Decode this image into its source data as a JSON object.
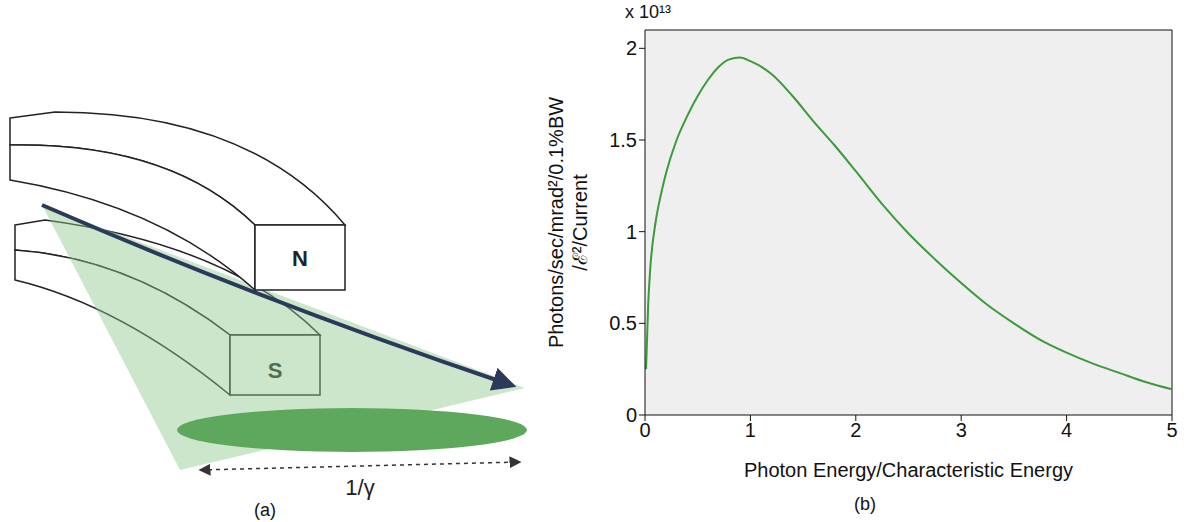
{
  "diagram": {
    "magnets": [
      "N",
      "S"
    ],
    "annotation": "1/γ",
    "caption": "(a)"
  },
  "chart_data": {
    "type": "line",
    "caption": "(b)",
    "y_multiplier": "x 10¹³",
    "xlabel": "Photon Energy/Characteristic Energy",
    "ylabel": "Photons/sec/mrad²/0.1%BW/ℰ²/Current",
    "x": [
      0.01,
      0.03,
      0.05,
      0.1,
      0.15,
      0.2,
      0.3,
      0.4,
      0.5,
      0.6,
      0.7,
      0.8,
      0.9,
      1.0,
      1.2,
      1.4,
      1.6,
      1.8,
      2.0,
      2.25,
      2.5,
      2.75,
      3.0,
      3.25,
      3.5,
      3.75,
      4.0,
      4.25,
      4.5,
      4.75,
      5.0
    ],
    "values": [
      0.25,
      0.6,
      0.8,
      1.05,
      1.2,
      1.32,
      1.5,
      1.63,
      1.74,
      1.83,
      1.9,
      1.94,
      1.95,
      1.93,
      1.86,
      1.74,
      1.6,
      1.47,
      1.33,
      1.15,
      0.99,
      0.85,
      0.72,
      0.6,
      0.5,
      0.41,
      0.34,
      0.28,
      0.23,
      0.18,
      0.14
    ],
    "color": "#3c9a3c",
    "xlim": [
      0,
      5
    ],
    "ylim": [
      0,
      2.1
    ],
    "xticks": [
      0,
      1,
      2,
      3,
      4,
      5
    ],
    "yticks": [
      0,
      0.5,
      1,
      1.5,
      2
    ],
    "grid": false
  }
}
